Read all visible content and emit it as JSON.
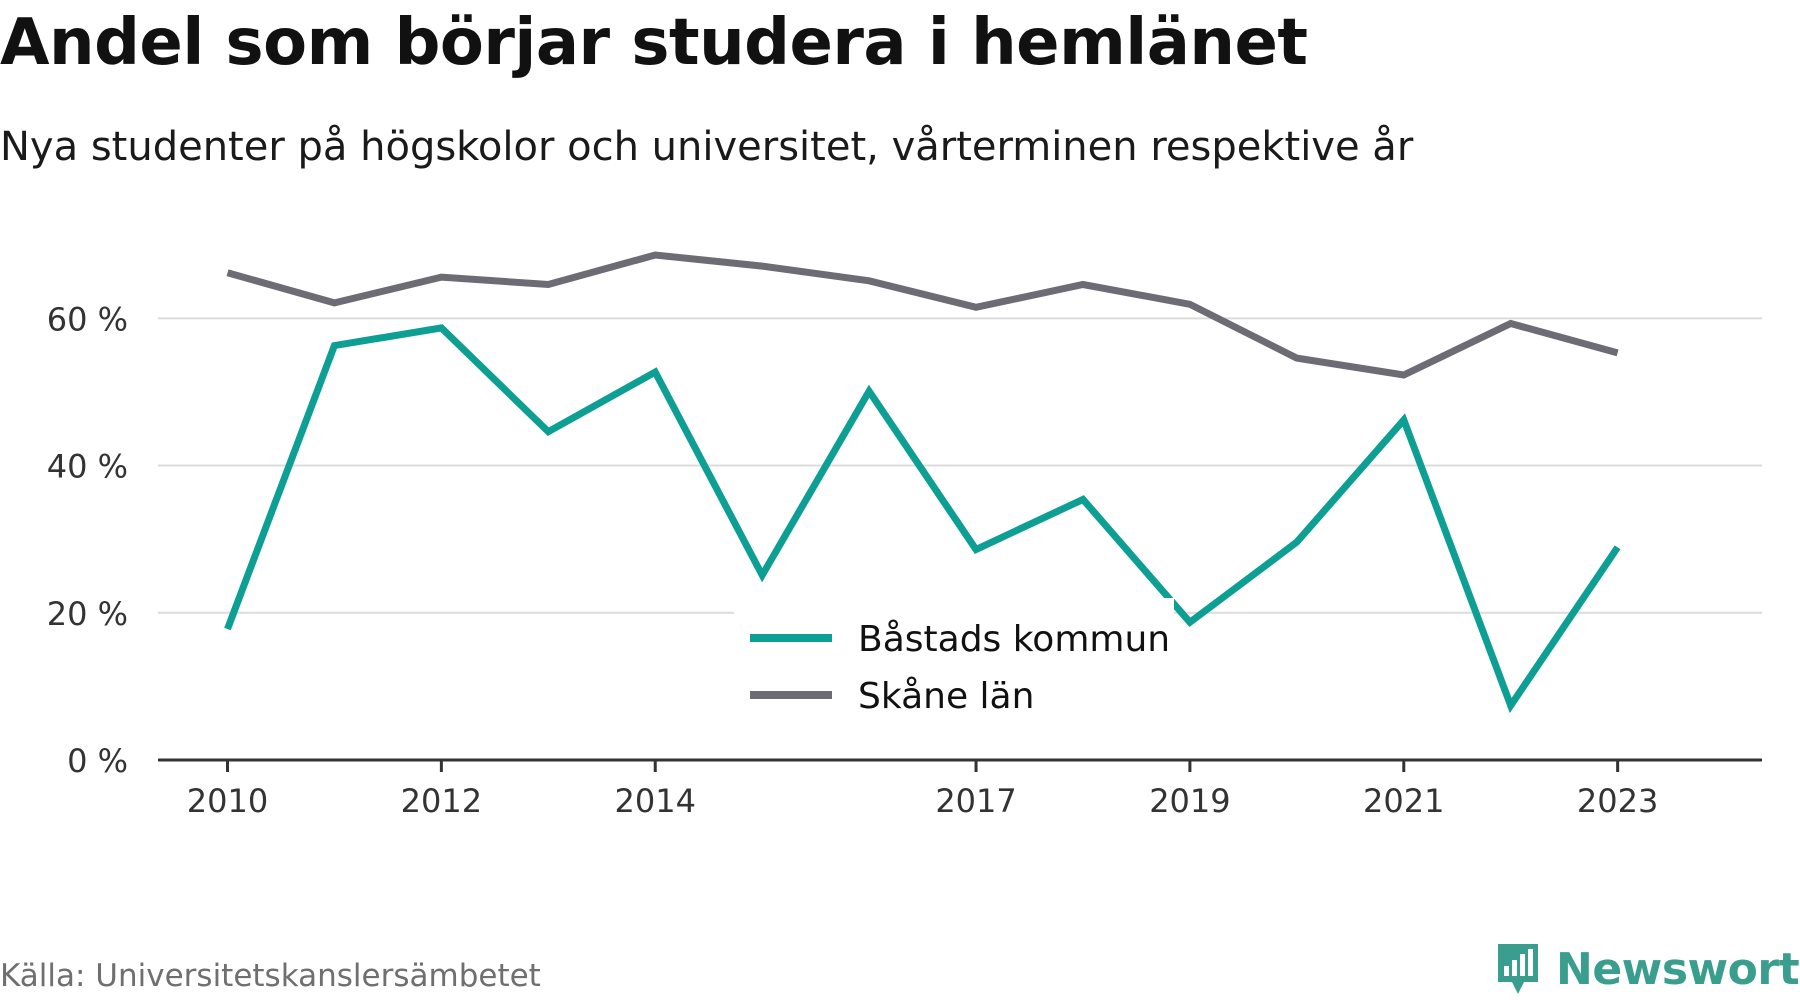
{
  "title": "Andel som börjar studera i hemlänet",
  "subtitle": "Nya studenter på högskolor och universitet, vårterminen respektive år",
  "source": "Källa: Universitetskanslersämbetet",
  "brand": {
    "name": "Newsworthy",
    "logo_icon": "newsworthy-logo-icon",
    "color": "#3a9e8e"
  },
  "chart_data": {
    "type": "line",
    "x": [
      2010,
      2011,
      2012,
      2013,
      2014,
      2015,
      2016,
      2017,
      2018,
      2019,
      2020,
      2021,
      2022,
      2023
    ],
    "x_tick_labels": [
      "2010",
      "2012",
      "2014",
      "2017",
      "2019",
      "2021",
      "2023"
    ],
    "x_tick_values": [
      2010,
      2012,
      2014,
      2017,
      2019,
      2021,
      2023
    ],
    "xlim": [
      2009.35,
      2024.35
    ],
    "ylim": [
      0,
      72
    ],
    "y_ticks": [
      0,
      20,
      40,
      60
    ],
    "y_tick_labels": [
      "0 %",
      "20 %",
      "40 %",
      "60 %"
    ],
    "grid": true,
    "legend_position": "bottom-center",
    "series": [
      {
        "name": "Båstads kommun",
        "color": "#0d9e94",
        "values": [
          17.8,
          56.3,
          58.7,
          44.6,
          52.7,
          25.1,
          50.1,
          28.6,
          35.4,
          18.7,
          29.6,
          46.2,
          7.4,
          28.9
        ]
      },
      {
        "name": "Skåne län",
        "color": "#6d6b73",
        "values": [
          66.2,
          62.1,
          65.6,
          64.6,
          68.6,
          67.1,
          65.1,
          61.5,
          64.6,
          61.9,
          54.6,
          52.3,
          59.3,
          55.3
        ]
      }
    ]
  }
}
